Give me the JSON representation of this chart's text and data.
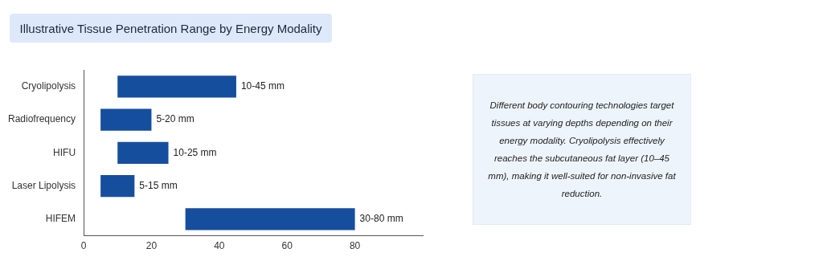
{
  "chart_data": {
    "type": "bar",
    "title": "Illustrative Tissue Penetration Range by Energy Modality",
    "orientation": "horizontal",
    "categories": [
      "Cryolipolysis",
      "Radiofrequency",
      "HIFU",
      "Laser Lipolysis",
      "HIFEM"
    ],
    "base": [
      10,
      5,
      10,
      5,
      30
    ],
    "values": [
      35,
      15,
      15,
      10,
      50
    ],
    "value_labels": [
      "10-45 mm",
      "5-20 mm",
      "10-25 mm",
      "5-15 mm",
      "30-80 mm"
    ],
    "color": "#164e9e",
    "xlim": [
      0,
      100
    ],
    "xticks": [
      0,
      20,
      40,
      60,
      80
    ],
    "grid": false,
    "legend": false,
    "annotations": [
      "Different body contouring technologies target tissues at varying depths depending on their energy modality. Cryolipolysis effectively reaches the subcutaneous fat layer (10–45 mm), making it well-suited for non-invasive fat reduction."
    ]
  }
}
